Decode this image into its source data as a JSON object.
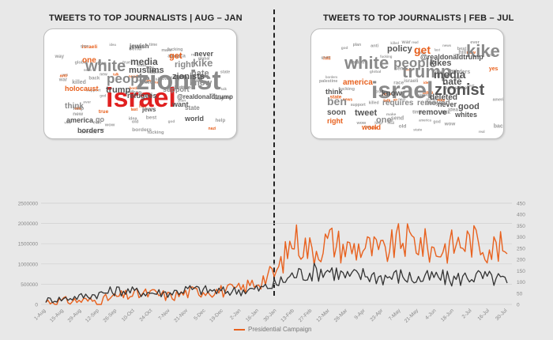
{
  "panels": [
    {
      "title": "TWEETS TO TOP JOURNALISTS | AUG – JAN"
    },
    {
      "title": "TWEETS TO TOP JOURNALISTS | FEB – JUL"
    }
  ],
  "word_clouds": [
    {
      "words": [
        {
          "text": "israel",
          "color": "#e02020"
        },
        {
          "text": "zionist",
          "color": "#8a8a8a"
        },
        {
          "text": "white",
          "color": "#8a8a8a"
        },
        {
          "text": "people",
          "color": "#8a8a8a"
        },
        {
          "text": "trump",
          "color": "#555555"
        },
        {
          "text": "media",
          "color": "#555555"
        },
        {
          "text": "muslims",
          "color": "#555555"
        },
        {
          "text": "kike",
          "color": "#8a8a8a"
        },
        {
          "text": "hate",
          "color": "#8a8a8a"
        },
        {
          "text": "know",
          "color": "#8a8a8a"
        },
        {
          "text": "zionists",
          "color": "#555555"
        },
        {
          "text": "right",
          "color": "#8a8a8a"
        },
        {
          "text": "get",
          "color": "#e8611e"
        },
        {
          "text": "holocaust",
          "color": "#e8611e"
        },
        {
          "text": "one",
          "color": "#e8611e"
        },
        {
          "text": "never",
          "color": "#555555"
        },
        {
          "text": "think",
          "color": "#8a8a8a"
        },
        {
          "text": "refugees",
          "color": "#555555"
        },
        {
          "text": "jewish",
          "color": "#555555"
        },
        {
          "text": "support",
          "color": "#8a8a8a"
        },
        {
          "text": "america",
          "color": "#555555"
        },
        {
          "text": "borders",
          "color": "#555555"
        },
        {
          "text": "@realdonaldtrump",
          "color": "#555555"
        },
        {
          "text": "want",
          "color": "#555555"
        },
        {
          "text": "state",
          "color": "#8a8a8a"
        },
        {
          "text": "world",
          "color": "#555555"
        },
        {
          "text": "jews",
          "color": "#555555"
        },
        {
          "text": "go",
          "color": "#8a8a8a"
        }
      ]
    },
    {
      "words": [
        {
          "text": "israel",
          "color": "#8a8a8a"
        },
        {
          "text": "kike",
          "color": "#8a8a8a"
        },
        {
          "text": "white",
          "color": "#8a8a8a"
        },
        {
          "text": "trump",
          "color": "#8a8a8a"
        },
        {
          "text": "people",
          "color": "#8a8a8a"
        },
        {
          "text": "zionist",
          "color": "#555555"
        },
        {
          "text": "media",
          "color": "#555555"
        },
        {
          "text": "hate",
          "color": "#555555"
        },
        {
          "text": "get",
          "color": "#e8611e"
        },
        {
          "text": "policy",
          "color": "#555555"
        },
        {
          "text": "@realdonaldtrump",
          "color": "#555555"
        },
        {
          "text": "america",
          "color": "#e8611e"
        },
        {
          "text": "tweet",
          "color": "#555555"
        },
        {
          "text": "know",
          "color": "#555555"
        },
        {
          "text": "ben",
          "color": "#8a8a8a"
        },
        {
          "text": "soon",
          "color": "#555555"
        },
        {
          "text": "good",
          "color": "#555555"
        },
        {
          "text": "never",
          "color": "#555555"
        },
        {
          "text": "requires",
          "color": "#8a8a8a"
        },
        {
          "text": "removed",
          "color": "#8a8a8a"
        },
        {
          "text": "remove",
          "color": "#555555"
        },
        {
          "text": "deleted",
          "color": "#555555"
        },
        {
          "text": "kikes",
          "color": "#555555"
        },
        {
          "text": "one",
          "color": "#8a8a8a"
        },
        {
          "text": "think",
          "color": "#555555"
        },
        {
          "text": "right",
          "color": "#e8611e"
        },
        {
          "text": "world",
          "color": "#e8611e"
        },
        {
          "text": "whites",
          "color": "#555555"
        }
      ]
    }
  ],
  "chart_data": {
    "type": "line",
    "title": "",
    "xlabel": "",
    "ylabel": "",
    "x": [
      "1-Aug",
      "15-Aug",
      "29-Aug",
      "12-Sep",
      "26-Sep",
      "10-Oct",
      "24-Oct",
      "7-Nov",
      "21-Nov",
      "5-Dec",
      "19-Dec",
      "2-Jan",
      "16-Jan",
      "30-Jan",
      "13-Feb",
      "27-Feb",
      "12-Mar",
      "26-Mar",
      "9-Apr",
      "23-Apr",
      "7-May",
      "21-May",
      "4-Jun",
      "18-Jun",
      "2-Jul",
      "16-Jul",
      "30-Jul"
    ],
    "x_tick_labels": [
      "1-Aug",
      "15-Aug",
      "29-Aug",
      "12-Sep",
      "26-Sep",
      "10-Oct",
      "24-Oct",
      "7-Nov",
      "21-Nov",
      "5-Dec",
      "19-Dec",
      "2-Jan",
      "16-Jan",
      "30-Jan",
      "13-Feb",
      "27-Feb",
      "12-Mar",
      "26-Mar",
      "9-Apr",
      "23-Apr",
      "7-May",
      "21-May",
      "4-Jun",
      "18-Jun",
      "2-Jul",
      "16-Jul",
      "30-Jul"
    ],
    "y_left_ticks": [
      "0",
      "500000",
      "1000000",
      "1500000",
      "2000000",
      "2500000"
    ],
    "y_right_ticks": [
      "0",
      "50",
      "100",
      "150",
      "200",
      "250",
      "300",
      "350",
      "400",
      "450"
    ],
    "ylim_left": [
      0,
      2500000
    ],
    "ylim_right": [
      0,
      450
    ],
    "grid": true,
    "legend_position": "bottom",
    "series": [
      {
        "name": "Presidential Campaign",
        "axis": "left",
        "color": "#e8611e",
        "values": [
          40000,
          50000,
          60000,
          60000,
          150000,
          200000,
          220000,
          160000,
          240000,
          300000,
          280000,
          320000,
          520000,
          700000,
          1500000,
          1200000,
          1450000,
          1250000,
          1300000,
          1150000,
          1450000,
          1400000,
          1200000,
          1350000,
          1450000,
          1300000,
          1250000
        ]
      },
      {
        "name": "",
        "axis": "right",
        "color": "#333333",
        "values": [
          15,
          20,
          30,
          40,
          55,
          50,
          45,
          45,
          60,
          55,
          50,
          55,
          60,
          80,
          120,
          130,
          140,
          110,
          120,
          110,
          115,
          100,
          110,
          100,
          115,
          105,
          95
        ]
      }
    ]
  },
  "legend": {
    "label": "Presidential Campaign"
  }
}
